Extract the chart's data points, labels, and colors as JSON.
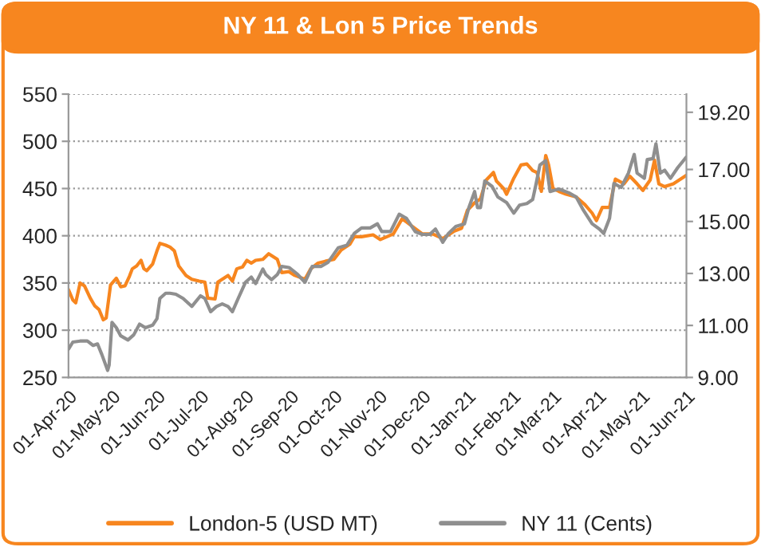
{
  "chart_data": {
    "type": "line",
    "title": "NY 11 & Lon 5 Price Trends",
    "series": [
      {
        "name": "London-5 (USD MT)",
        "color": "#f7861f",
        "x": [
          "2020-04-01",
          "2020-04-04",
          "2020-04-06",
          "2020-04-09",
          "2020-04-12",
          "2020-04-16",
          "2020-04-19",
          "2020-04-22",
          "2020-04-25",
          "2020-04-27",
          "2020-04-30",
          "2020-05-04",
          "2020-05-07",
          "2020-05-10",
          "2020-05-13",
          "2020-05-15",
          "2020-05-18",
          "2020-05-21",
          "2020-05-23",
          "2020-05-25",
          "2020-05-29",
          "2020-06-01",
          "2020-06-03",
          "2020-06-07",
          "2020-06-10",
          "2020-06-13",
          "2020-06-16",
          "2020-06-21",
          "2020-06-25",
          "2020-06-30",
          "2020-07-04",
          "2020-07-06",
          "2020-07-11",
          "2020-07-13",
          "2020-07-20",
          "2020-07-23",
          "2020-07-26",
          "2020-07-30",
          "2020-08-02",
          "2020-08-05",
          "2020-08-08",
          "2020-08-13",
          "2020-08-17",
          "2020-08-23",
          "2020-08-26",
          "2020-08-31",
          "2020-09-04",
          "2020-09-11",
          "2020-09-15",
          "2020-09-20",
          "2020-09-25",
          "2020-10-01",
          "2020-10-06",
          "2020-10-12",
          "2020-10-15",
          "2020-10-20",
          "2020-10-28",
          "2020-11-02",
          "2020-11-11",
          "2020-11-17",
          "2020-11-24",
          "2020-12-01",
          "2020-12-08",
          "2020-12-15",
          "2020-12-23",
          "2020-12-28",
          "2021-01-01",
          "2021-01-06",
          "2021-01-10",
          "2021-01-14",
          "2021-01-19",
          "2021-01-21",
          "2021-01-26",
          "2021-01-28",
          "2021-02-02",
          "2021-02-07",
          "2021-02-11",
          "2021-02-15",
          "2021-02-18",
          "2021-02-21",
          "2021-02-24",
          "2021-02-26",
          "2021-03-01",
          "2021-03-05",
          "2021-03-10",
          "2021-03-17",
          "2021-03-23",
          "2021-03-28",
          "2021-03-31",
          "2021-04-04",
          "2021-04-09",
          "2021-04-13",
          "2021-04-19",
          "2021-04-23",
          "2021-04-28",
          "2021-05-02",
          "2021-05-07",
          "2021-05-10",
          "2021-05-13",
          "2021-05-17",
          "2021-05-23",
          "2021-05-27",
          "2021-06-01"
        ],
        "values": [
          343,
          332,
          329,
          350,
          347,
          334,
          326,
          322,
          311,
          313,
          348,
          355,
          346,
          347,
          357,
          365,
          368,
          374,
          365,
          363,
          370,
          384,
          392,
          390,
          388,
          384,
          368,
          358,
          354,
          352,
          351,
          334,
          333,
          351,
          358,
          352,
          365,
          367,
          374,
          371,
          374,
          375,
          381,
          375,
          361,
          362,
          358,
          354,
          365,
          371,
          373,
          375,
          385,
          391,
          399,
          399,
          401,
          396,
          402,
          418,
          410,
          402,
          402,
          397,
          405,
          408,
          427,
          435,
          439,
          459,
          467,
          458,
          450,
          444,
          461,
          475,
          476,
          469,
          467,
          447,
          485,
          475,
          450,
          447,
          444,
          441,
          433,
          424,
          416,
          430,
          430,
          460,
          455,
          463,
          455,
          448,
          459,
          480,
          455,
          452,
          455,
          459,
          464
        ]
      },
      {
        "name": "NY 11 (Cents)",
        "color": "#8f8f8f",
        "axis": "y2",
        "x": [
          "2020-04-01",
          "2020-04-04",
          "2020-04-09",
          "2020-04-14",
          "2020-04-18",
          "2020-04-21",
          "2020-04-24",
          "2020-04-28",
          "2020-04-29",
          "2020-05-01",
          "2020-05-04",
          "2020-05-07",
          "2020-05-12",
          "2020-05-16",
          "2020-05-20",
          "2020-05-24",
          "2020-05-29",
          "2020-06-01",
          "2020-06-03",
          "2020-06-07",
          "2020-06-10",
          "2020-06-14",
          "2020-06-19",
          "2020-06-25",
          "2020-07-01",
          "2020-07-04",
          "2020-07-08",
          "2020-07-12",
          "2020-07-16",
          "2020-07-20",
          "2020-07-23",
          "2020-07-27",
          "2020-08-01",
          "2020-08-05",
          "2020-08-08",
          "2020-08-13",
          "2020-08-15",
          "2020-08-19",
          "2020-08-23",
          "2020-08-26",
          "2020-08-31",
          "2020-09-06",
          "2020-09-11",
          "2020-09-16",
          "2020-09-22",
          "2020-09-27",
          "2020-10-04",
          "2020-10-10",
          "2020-10-15",
          "2020-10-20",
          "2020-10-26",
          "2020-10-31",
          "2020-11-03",
          "2020-11-09",
          "2020-11-15",
          "2020-11-20",
          "2020-11-26",
          "2020-12-01",
          "2020-12-06",
          "2020-12-10",
          "2020-12-15",
          "2020-12-19",
          "2020-12-24",
          "2020-12-30",
          "2021-01-02",
          "2021-01-06",
          "2021-01-08",
          "2021-01-10",
          "2021-01-13",
          "2021-01-18",
          "2021-01-22",
          "2021-01-28",
          "2021-02-02",
          "2021-02-06",
          "2021-02-11",
          "2021-02-15",
          "2021-02-17",
          "2021-02-20",
          "2021-02-24",
          "2021-02-27",
          "2021-03-05",
          "2021-03-12",
          "2021-03-17",
          "2021-03-22",
          "2021-03-28",
          "2021-04-02",
          "2021-04-05",
          "2021-04-09",
          "2021-04-12",
          "2021-04-17",
          "2021-04-22",
          "2021-04-26",
          "2021-04-28",
          "2021-05-03",
          "2021-05-05",
          "2021-05-09",
          "2021-05-11",
          "2021-05-14",
          "2021-05-17",
          "2021-05-21",
          "2021-05-26",
          "2021-06-01"
        ],
        "values": [
          10.09,
          10.36,
          10.4,
          10.4,
          10.23,
          10.29,
          9.88,
          9.27,
          9.47,
          11.12,
          10.91,
          10.6,
          10.44,
          10.64,
          11.05,
          10.91,
          11.01,
          11.26,
          12.04,
          12.24,
          12.24,
          12.2,
          12.04,
          11.73,
          12.14,
          12.04,
          11.53,
          11.73,
          11.83,
          11.73,
          11.53,
          12.04,
          12.66,
          12.86,
          12.61,
          13.17,
          12.96,
          12.76,
          12.96,
          13.27,
          13.23,
          12.96,
          12.66,
          13.27,
          13.27,
          13.43,
          13.99,
          14.09,
          14.54,
          14.75,
          14.75,
          14.91,
          14.61,
          14.61,
          15.28,
          15.12,
          14.61,
          14.5,
          14.5,
          14.71,
          14.2,
          14.54,
          14.81,
          14.91,
          15.53,
          16.15,
          15.53,
          15.53,
          16.56,
          16.35,
          15.94,
          15.73,
          15.32,
          15.63,
          15.69,
          15.84,
          16.35,
          17.17,
          17.34,
          16.15,
          16.25,
          16.1,
          15.94,
          15.43,
          14.91,
          14.71,
          14.54,
          15.12,
          16.46,
          16.31,
          16.86,
          17.58,
          16.86,
          16.66,
          17.38,
          17.42,
          17.99,
          16.86,
          16.97,
          16.66,
          17.07,
          17.48
        ]
      }
    ],
    "xlim": [
      "2020-04-01",
      "2021-06-01"
    ],
    "xticks": [
      {
        "value": "2020-04-01",
        "label": "01-Apr-20"
      },
      {
        "value": "2020-05-01",
        "label": "01-May-20"
      },
      {
        "value": "2020-06-01",
        "label": "01-Jun-20"
      },
      {
        "value": "2020-07-01",
        "label": "01-Jul-20"
      },
      {
        "value": "2020-08-01",
        "label": "01-Aug-20"
      },
      {
        "value": "2020-09-01",
        "label": "01-Sep-20"
      },
      {
        "value": "2020-10-01",
        "label": "01-Oct-20"
      },
      {
        "value": "2020-11-01",
        "label": "01-Nov-20"
      },
      {
        "value": "2020-12-01",
        "label": "01-Dec-20"
      },
      {
        "value": "2021-01-01",
        "label": "01-Jan-21"
      },
      {
        "value": "2021-02-01",
        "label": "01-Feb-21"
      },
      {
        "value": "2021-03-01",
        "label": "01-Mar-21"
      },
      {
        "value": "2021-04-01",
        "label": "01-Apr-21"
      },
      {
        "value": "2021-05-01",
        "label": "01-May-21"
      },
      {
        "value": "2021-06-01",
        "label": "01-Jun-21"
      }
    ],
    "ylim": [
      250,
      550
    ],
    "yticks": [
      250,
      300,
      350,
      400,
      450,
      500,
      550
    ],
    "y2lim": [
      9,
      19.9
    ],
    "y2ticks": [
      {
        "value": 9,
        "label": "9.00"
      },
      {
        "value": 11,
        "label": "11.00"
      },
      {
        "value": 13,
        "label": "13.00"
      },
      {
        "value": 15,
        "label": "15.00"
      },
      {
        "value": 17,
        "label": "17.00"
      },
      {
        "value": 19.2,
        "label": "19.20"
      }
    ],
    "grid": "y",
    "legend": "bottom",
    "marker": "none",
    "line_style": "solid"
  }
}
